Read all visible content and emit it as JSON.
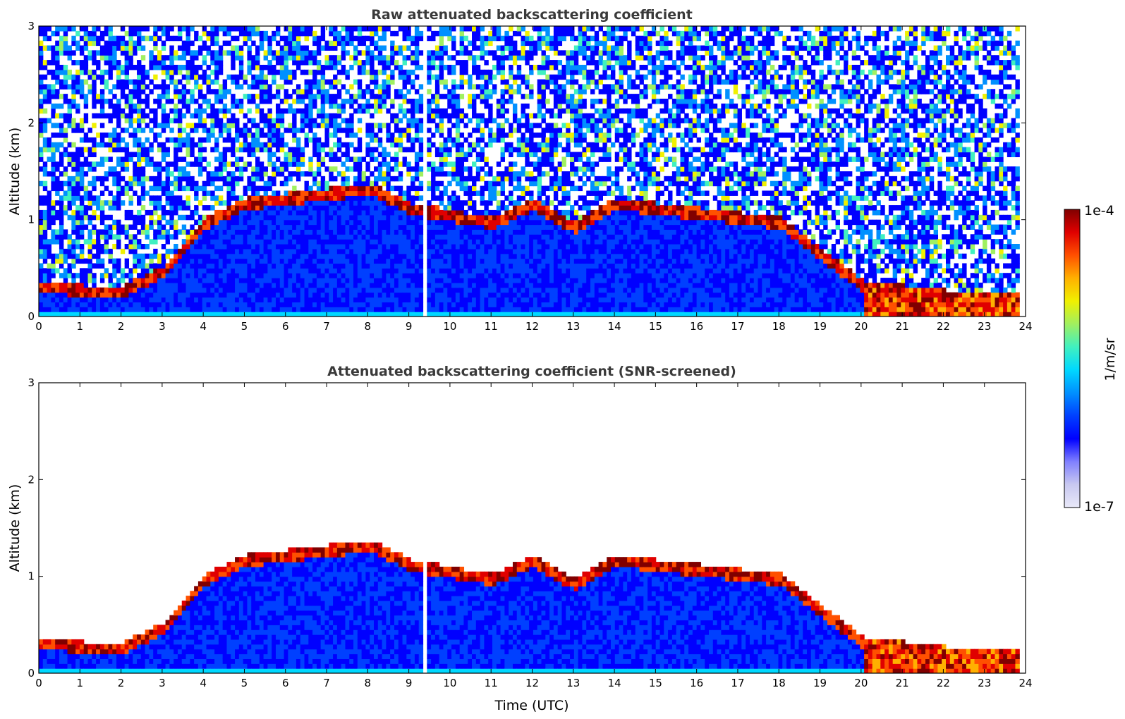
{
  "chart_data": [
    {
      "type": "heatmap",
      "title": "Raw attenuated backscattering coefficient",
      "xlabel": "",
      "ylabel": "Altitude (km)",
      "xlim": [
        0,
        24
      ],
      "ylim": [
        0,
        3
      ],
      "xticks": [
        "0",
        "1",
        "2",
        "3",
        "4",
        "5",
        "6",
        "7",
        "8",
        "9",
        "10",
        "11",
        "12",
        "13",
        "14",
        "15",
        "16",
        "17",
        "18",
        "19",
        "20",
        "21",
        "22",
        "23",
        "24"
      ],
      "yticks": [
        "0",
        "1",
        "2",
        "3"
      ],
      "grid": false,
      "features": {
        "boundary_layer_top_km": [
          {
            "time": 0,
            "value": 0.35
          },
          {
            "time": 1,
            "value": 0.3
          },
          {
            "time": 2,
            "value": 0.3
          },
          {
            "time": 3,
            "value": 0.5
          },
          {
            "time": 4,
            "value": 1.0
          },
          {
            "time": 5,
            "value": 1.2
          },
          {
            "time": 8,
            "value": 1.35
          },
          {
            "time": 9,
            "value": 1.15
          },
          {
            "time": 11,
            "value": 1.0
          },
          {
            "time": 12,
            "value": 1.2
          },
          {
            "time": 13,
            "value": 0.95
          },
          {
            "time": 14,
            "value": 1.2
          },
          {
            "time": 16,
            "value": 1.1
          },
          {
            "time": 18,
            "value": 1.0
          },
          {
            "time": 20,
            "value": 0.35
          },
          {
            "time": 22,
            "value": 0.25
          },
          {
            "time": 23.8,
            "value": 0.25
          }
        ],
        "data_gap_utc": [
          9.25,
          9.35
        ]
      }
    },
    {
      "type": "heatmap",
      "title": "Attenuated backscattering coefficient (SNR-screened)",
      "xlabel": "Time (UTC)",
      "ylabel": "Altitude (km)",
      "xlim": [
        0,
        24
      ],
      "ylim": [
        0,
        3
      ],
      "xticks": [
        "0",
        "1",
        "2",
        "3",
        "4",
        "5",
        "6",
        "7",
        "8",
        "9",
        "10",
        "11",
        "12",
        "13",
        "14",
        "15",
        "16",
        "17",
        "18",
        "19",
        "20",
        "21",
        "22",
        "23",
        "24"
      ],
      "yticks": [
        "0",
        "1",
        "2",
        "3"
      ],
      "grid": false
    }
  ],
  "colorbar": {
    "label": "1/m/sr",
    "max_label": "1e-4",
    "min_label": "1e-7",
    "min": 1e-07,
    "max": 0.0001,
    "scale": "log",
    "colors": [
      "#e8e8f8",
      "#c8c8f0",
      "#8080ff",
      "#0000ff",
      "#0040ff",
      "#0090ff",
      "#00d8ff",
      "#40f0c0",
      "#a0f060",
      "#f0f000",
      "#ffb000",
      "#ff5000",
      "#e00000",
      "#800000"
    ]
  }
}
